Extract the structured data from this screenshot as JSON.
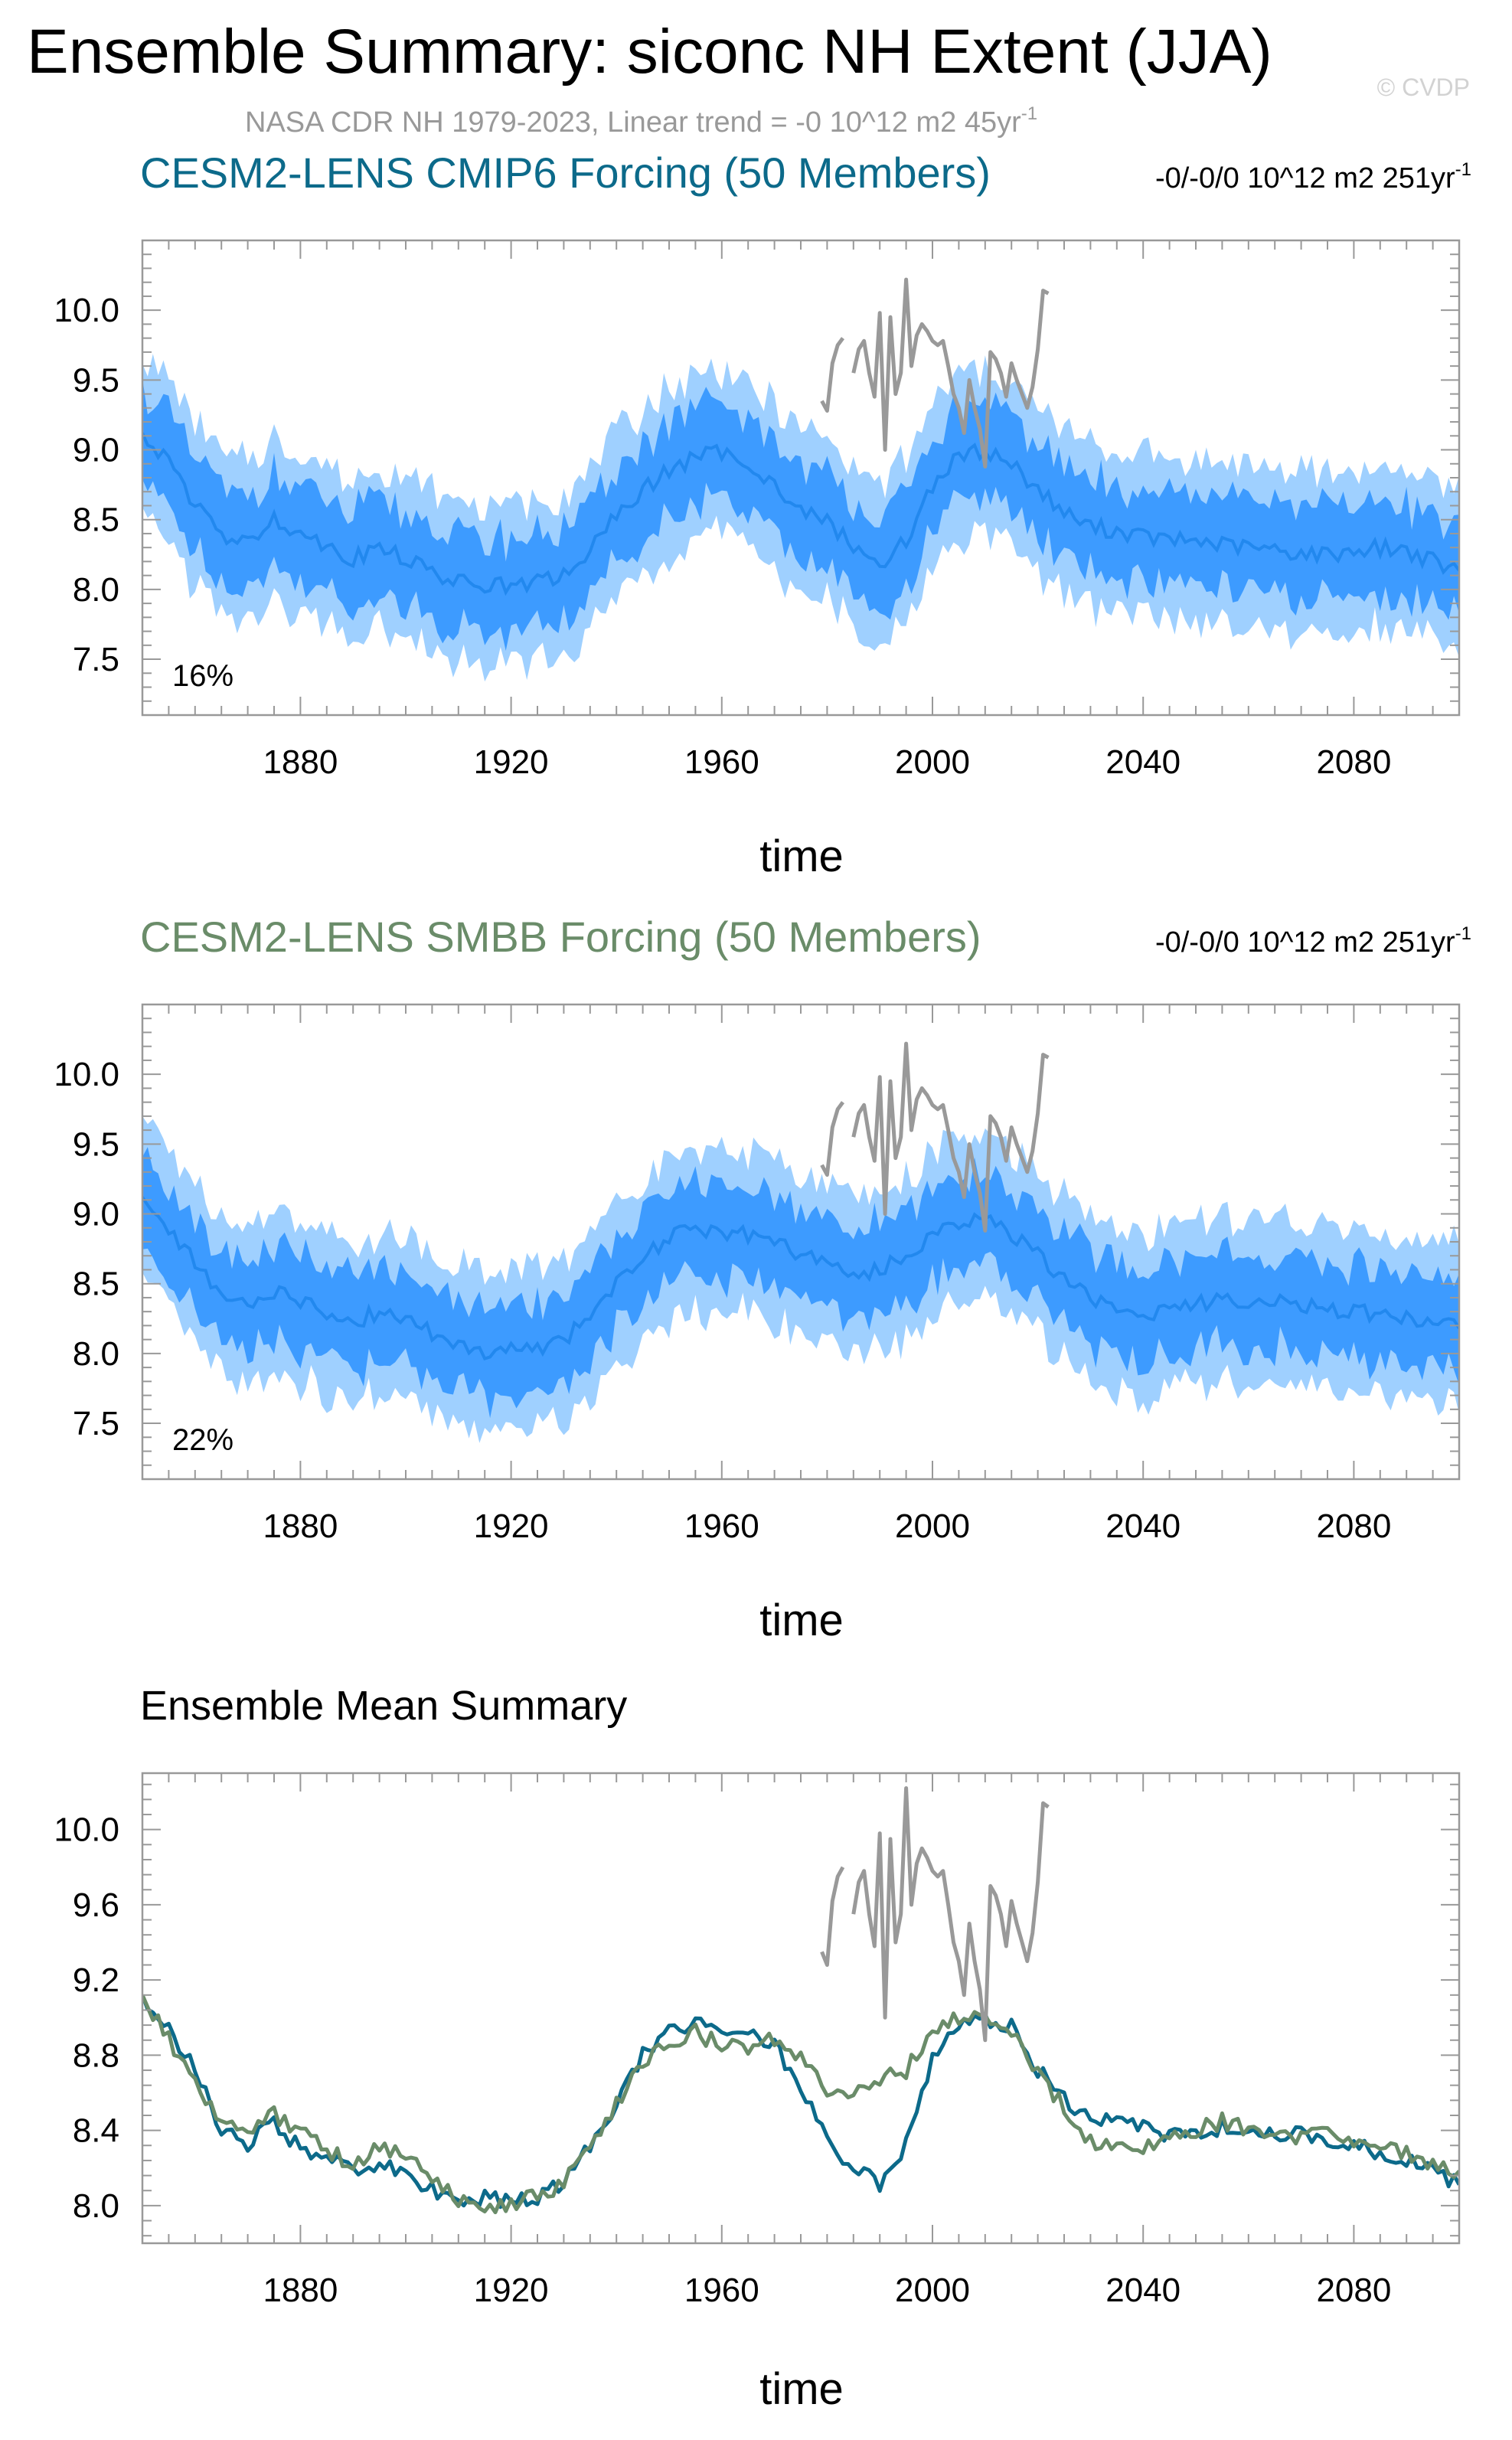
{
  "title": "Ensemble Summary: siconc NH Extent (JJA)",
  "copyright": "© CVDP",
  "subtitle": "NASA CDR NH 1979-2023, Linear trend = -0 10^12 m2 45yr",
  "subtitle_sup": "-1",
  "colors": {
    "obs": "#999999",
    "cmip6": "#0c6a8a",
    "smbb": "#6a8c69",
    "band_outer": "#9fd0ff",
    "band_inner": "#3d9bff",
    "mean_line": "#2288ee",
    "axis": "#999999"
  },
  "chart_data": [
    {
      "type": "line",
      "title": "CESM2-LENS CMIP6 Forcing (50 Members)",
      "trend_text": "-0/-0/0 10^12 m2 251yr",
      "trend_sup": "-1",
      "percent_label": "16%",
      "xlabel": "time",
      "ylabel": "",
      "xlim": [
        1850,
        2100
      ],
      "ylim": [
        7.1,
        10.5
      ],
      "xticks": [
        1880,
        1920,
        1960,
        2000,
        2040,
        2080
      ],
      "xtick_labels": [
        "1880",
        "1920",
        "1960",
        "2000",
        "2040",
        "2080"
      ],
      "yticks": [
        7.5,
        8.0,
        8.5,
        9.0,
        9.5,
        10.0
      ],
      "ytick_labels": [
        "7.5",
        "8.0",
        "8.5",
        "9.0",
        "9.5",
        "10.0"
      ],
      "band_inner_halfwidth": 0.33,
      "band_outer_halfwidth": 0.58,
      "series": [
        {
          "name": "ensemble mean",
          "x_start": 1850,
          "x_step": 5,
          "values": [
            9.12,
            8.9,
            8.62,
            8.38,
            8.32,
            8.52,
            8.4,
            8.32,
            8.22,
            8.3,
            8.22,
            8.12,
            8.05,
            8.04,
            8.02,
            8.05,
            8.1,
            8.28,
            8.52,
            8.72,
            8.85,
            8.95,
            8.98,
            8.92,
            8.75,
            8.55,
            8.5,
            8.3,
            8.18,
            8.35,
            8.75,
            8.95,
            9.0,
            8.9,
            8.72,
            8.55,
            8.45,
            8.42,
            8.38,
            8.35,
            8.35,
            8.32,
            8.3,
            8.28,
            8.26,
            8.25,
            8.28,
            8.3,
            8.28,
            8.2,
            8.12
          ]
        },
        {
          "name": "observations",
          "x": [
            1979,
            1980,
            1981,
            1982,
            1983,
            1984,
            1985,
            1986,
            1987,
            1988,
            1989,
            1990,
            1991,
            1992,
            1993,
            1994,
            1995,
            1996,
            1997,
            1998,
            1999,
            2000,
            2001,
            2002,
            2003,
            2004,
            2005,
            2006,
            2007,
            2008,
            2009,
            2010,
            2011,
            2012,
            2013,
            2014,
            2015,
            2016,
            2017,
            2018,
            2019,
            2020,
            2021,
            2022,
            2023
          ],
          "values": [
            9.35,
            9.28,
            9.62,
            9.75,
            9.8,
            null,
            9.55,
            9.72,
            9.78,
            9.55,
            9.38,
            9.98,
            9.0,
            9.95,
            9.4,
            9.55,
            10.22,
            9.6,
            9.82,
            9.9,
            9.85,
            9.78,
            9.75,
            9.78,
            9.6,
            9.4,
            9.3,
            9.12,
            9.5,
            9.3,
            9.15,
            8.88,
            9.7,
            9.65,
            9.55,
            9.38,
            9.62,
            9.5,
            9.4,
            9.3,
            9.45,
            9.72,
            10.14,
            10.12,
            null
          ]
        }
      ]
    },
    {
      "type": "line",
      "title": "CESM2-LENS SMBB Forcing (50 Members)",
      "trend_text": "-0/-0/0 10^12 m2 251yr",
      "trend_sup": "-1",
      "percent_label": "22%",
      "xlabel": "time",
      "ylabel": "",
      "xlim": [
        1850,
        2100
      ],
      "ylim": [
        7.1,
        10.5
      ],
      "xticks": [
        1880,
        1920,
        1960,
        2000,
        2040,
        2080
      ],
      "xtick_labels": [
        "1880",
        "1920",
        "1960",
        "2000",
        "2040",
        "2080"
      ],
      "yticks": [
        7.5,
        8.0,
        8.5,
        9.0,
        9.5,
        10.0
      ],
      "ytick_labels": [
        "7.5",
        "8.0",
        "8.5",
        "9.0",
        "9.5",
        "10.0"
      ],
      "band_inner_halfwidth": 0.33,
      "band_outer_halfwidth": 0.58,
      "series": [
        {
          "name": "ensemble mean",
          "x_start": 1850,
          "x_step": 5,
          "values": [
            9.12,
            8.88,
            8.65,
            8.42,
            8.35,
            8.45,
            8.38,
            8.3,
            8.22,
            8.3,
            8.25,
            8.15,
            8.05,
            8.0,
            8.03,
            8.05,
            8.1,
            8.28,
            8.5,
            8.7,
            8.82,
            8.9,
            8.88,
            8.85,
            8.8,
            8.72,
            8.65,
            8.55,
            8.6,
            8.7,
            8.85,
            8.95,
            8.98,
            8.85,
            8.7,
            8.55,
            8.4,
            8.32,
            8.28,
            8.32,
            8.35,
            8.4,
            8.38,
            8.36,
            8.35,
            8.32,
            8.3,
            8.28,
            8.25,
            8.22,
            8.2
          ]
        },
        {
          "name": "observations",
          "x": [
            1979,
            1980,
            1981,
            1982,
            1983,
            1984,
            1985,
            1986,
            1987,
            1988,
            1989,
            1990,
            1991,
            1992,
            1993,
            1994,
            1995,
            1996,
            1997,
            1998,
            1999,
            2000,
            2001,
            2002,
            2003,
            2004,
            2005,
            2006,
            2007,
            2008,
            2009,
            2010,
            2011,
            2012,
            2013,
            2014,
            2015,
            2016,
            2017,
            2018,
            2019,
            2020,
            2021,
            2022,
            2023
          ],
          "values": [
            9.35,
            9.28,
            9.62,
            9.75,
            9.8,
            null,
            9.55,
            9.72,
            9.78,
            9.55,
            9.38,
            9.98,
            9.0,
            9.95,
            9.4,
            9.55,
            10.22,
            9.6,
            9.82,
            9.9,
            9.85,
            9.78,
            9.75,
            9.78,
            9.6,
            9.4,
            9.3,
            9.12,
            9.5,
            9.3,
            9.15,
            8.88,
            9.7,
            9.65,
            9.55,
            9.38,
            9.62,
            9.5,
            9.4,
            9.3,
            9.45,
            9.72,
            10.14,
            10.12,
            null
          ]
        }
      ]
    },
    {
      "type": "line",
      "title": "Ensemble Mean Summary",
      "xlabel": "time",
      "ylabel": "",
      "xlim": [
        1850,
        2100
      ],
      "ylim": [
        7.8,
        10.3
      ],
      "xticks": [
        1880,
        1920,
        1960,
        2000,
        2040,
        2080
      ],
      "xtick_labels": [
        "1880",
        "1920",
        "1960",
        "2000",
        "2040",
        "2080"
      ],
      "yticks": [
        8.0,
        8.4,
        8.8,
        9.2,
        9.6,
        10.0
      ],
      "ytick_labels": [
        "8.0",
        "8.4",
        "8.8",
        "9.2",
        "9.6",
        "10.0"
      ],
      "series": [
        {
          "name": "CESM2-LENS CMIP6 Forcing",
          "x_start": 1850,
          "x_step": 5,
          "values": [
            9.12,
            8.95,
            8.72,
            8.4,
            8.32,
            8.45,
            8.3,
            8.25,
            8.18,
            8.22,
            8.15,
            8.08,
            8.02,
            8.04,
            8.02,
            8.05,
            8.12,
            8.32,
            8.55,
            8.8,
            8.92,
            8.98,
            8.95,
            8.92,
            8.85,
            8.65,
            8.35,
            8.2,
            8.12,
            8.32,
            8.78,
            8.95,
            9.0,
            8.95,
            8.72,
            8.58,
            8.45,
            8.45,
            8.42,
            8.38,
            8.38,
            8.42,
            8.4,
            8.38,
            8.38,
            8.36,
            8.33,
            8.28,
            8.24,
            8.2,
            8.1
          ]
        },
        {
          "name": "CESM2-LENS SMBB Forcing",
          "x_start": 1850,
          "x_step": 5,
          "values": [
            9.12,
            8.88,
            8.65,
            8.42,
            8.38,
            8.48,
            8.4,
            8.3,
            8.22,
            8.32,
            8.25,
            8.15,
            8.02,
            7.97,
            8.0,
            8.05,
            8.12,
            8.32,
            8.55,
            8.75,
            8.88,
            8.92,
            8.85,
            8.85,
            8.88,
            8.78,
            8.62,
            8.58,
            8.68,
            8.72,
            8.95,
            9.0,
            8.98,
            8.92,
            8.7,
            8.52,
            8.35,
            8.32,
            8.3,
            8.35,
            8.4,
            8.45,
            8.4,
            8.38,
            8.36,
            8.38,
            8.35,
            8.32,
            8.28,
            8.22,
            8.18
          ]
        },
        {
          "name": "observations",
          "x": [
            1979,
            1980,
            1981,
            1982,
            1983,
            1984,
            1985,
            1986,
            1987,
            1988,
            1989,
            1990,
            1991,
            1992,
            1993,
            1994,
            1995,
            1996,
            1997,
            1998,
            1999,
            2000,
            2001,
            2002,
            2003,
            2004,
            2005,
            2006,
            2007,
            2008,
            2009,
            2010,
            2011,
            2012,
            2013,
            2014,
            2015,
            2016,
            2017,
            2018,
            2019,
            2020,
            2021,
            2022,
            2023
          ],
          "values": [
            9.35,
            9.28,
            9.62,
            9.75,
            9.8,
            null,
            9.55,
            9.72,
            9.78,
            9.55,
            9.38,
            9.98,
            9.0,
            9.95,
            9.4,
            9.55,
            10.22,
            9.6,
            9.82,
            9.9,
            9.85,
            9.78,
            9.75,
            9.78,
            9.6,
            9.4,
            9.3,
            9.12,
            9.5,
            9.3,
            9.15,
            8.88,
            9.7,
            9.65,
            9.55,
            9.38,
            9.62,
            9.5,
            9.4,
            9.3,
            9.45,
            9.72,
            10.14,
            10.12,
            null
          ]
        }
      ]
    }
  ]
}
